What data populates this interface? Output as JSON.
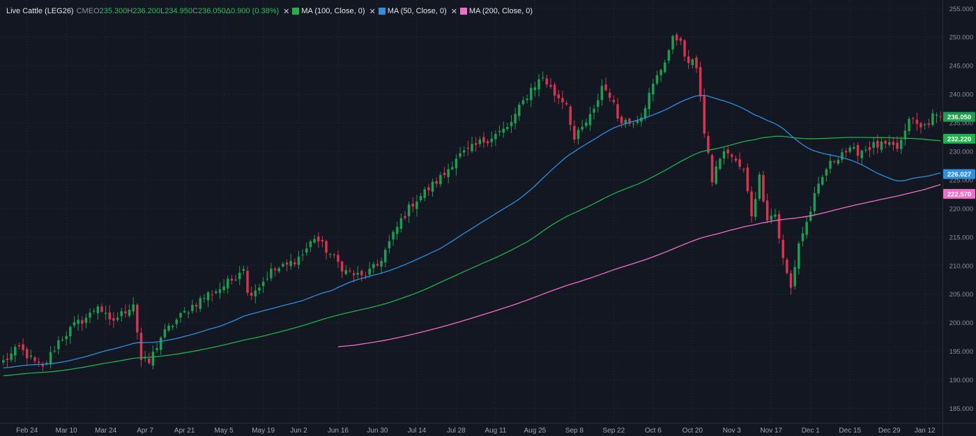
{
  "legend": {
    "symbol": "Live Cattle (LEG26)",
    "exchange": "CME",
    "open_label": "O",
    "open": "235.300",
    "high_label": "H",
    "high": "236.200",
    "low_label": "L",
    "low": "234.950",
    "close_label": "C",
    "close": "236.050",
    "change": "Δ0.900 (0.38%)",
    "indicators": [
      {
        "label": "MA (100, Close, 0)",
        "color": "#1fb14a"
      },
      {
        "label": "MA (50, Close, 0)",
        "color": "#2f8fe0"
      },
      {
        "label": "MA (200, Close, 0)",
        "color": "#f06ec8"
      }
    ],
    "close_icon": "close-icon"
  },
  "colors": {
    "background": "#131722",
    "grid": "#2a2e39",
    "up": "#1f9e4f",
    "down": "#d9334f",
    "ma50": "#2f8fe0",
    "ma100": "#1fb14a",
    "ma200": "#f06ec8"
  },
  "chart_data": {
    "type": "candlestick",
    "title": "Live Cattle (LEG26)",
    "ylim": [
      182.5,
      256.5
    ],
    "y_ticks": [
      "185.000",
      "190.000",
      "195.000",
      "200.000",
      "205.000",
      "210.000",
      "215.000",
      "220.000",
      "225.000",
      "230.000",
      "235.000",
      "240.000",
      "245.000",
      "250.000",
      "255.000"
    ],
    "x_ticks": [
      "Feb 24",
      "Mar 10",
      "Mar 24",
      "Apr 7",
      "Apr 21",
      "May 5",
      "May 19",
      "Jun 2",
      "Jun 16",
      "Jun 30",
      "Jul 14",
      "Jul 28",
      "Aug 11",
      "Aug 25",
      "Sep 8",
      "Sep 22",
      "Oct 6",
      "Oct 20",
      "Nov 3",
      "Nov 17",
      "Dec 1",
      "Dec 15",
      "Dec 29",
      "Jan 12"
    ],
    "x_tick_index": [
      6,
      16,
      26,
      36,
      46,
      56,
      66,
      75,
      85,
      95,
      105,
      115,
      125,
      135,
      145,
      155,
      165,
      175,
      185,
      195,
      205,
      215,
      225,
      234
    ],
    "price_tags": [
      {
        "label": "236.050",
        "value": 236.05,
        "color": "#1f9e4f"
      },
      {
        "label": "232.220",
        "value": 232.22,
        "color": "#1fb14a"
      },
      {
        "label": "226.027",
        "value": 226.027,
        "color": "#2f8fe0"
      },
      {
        "label": "222.570",
        "value": 222.57,
        "color": "#f06ec8"
      }
    ],
    "close_anchors": [
      [
        0,
        193.2
      ],
      [
        4,
        195.6
      ],
      [
        8,
        193.0
      ],
      [
        10,
        192.0
      ],
      [
        14,
        196.8
      ],
      [
        18,
        199.5
      ],
      [
        22,
        201.4
      ],
      [
        24,
        203.2
      ],
      [
        27,
        200.0
      ],
      [
        30,
        201.5
      ],
      [
        33,
        203.5
      ],
      [
        35,
        193.5
      ],
      [
        37,
        193.0
      ],
      [
        40,
        197.5
      ],
      [
        44,
        200.5
      ],
      [
        48,
        203.0
      ],
      [
        52,
        205.0
      ],
      [
        55,
        206.0
      ],
      [
        58,
        207.5
      ],
      [
        61,
        210.0
      ],
      [
        62,
        205.0
      ],
      [
        65,
        206.5
      ],
      [
        68,
        209.0
      ],
      [
        72,
        210.0
      ],
      [
        76,
        212.0
      ],
      [
        79,
        215.0
      ],
      [
        83,
        212.0
      ],
      [
        87,
        209.0
      ],
      [
        91,
        208.0
      ],
      [
        95,
        210.0
      ],
      [
        98,
        214.0
      ],
      [
        101,
        218.0
      ],
      [
        104,
        221.0
      ],
      [
        108,
        223.5
      ],
      [
        112,
        226.0
      ],
      [
        115,
        229.0
      ],
      [
        118,
        230.0
      ],
      [
        121,
        231.5
      ],
      [
        125,
        233.0
      ],
      [
        128,
        234.0
      ],
      [
        131,
        237.5
      ],
      [
        134,
        241.0
      ],
      [
        137,
        243.0
      ],
      [
        140,
        240.0
      ],
      [
        143,
        238.5
      ],
      [
        145,
        232.0
      ],
      [
        147,
        234.0
      ],
      [
        150,
        237.0
      ],
      [
        152,
        241.5
      ],
      [
        154,
        240.0
      ],
      [
        156,
        236.0
      ],
      [
        159,
        235.0
      ],
      [
        162,
        236.5
      ],
      [
        165,
        241.5
      ],
      [
        168,
        246.0
      ],
      [
        170,
        249.5
      ],
      [
        172,
        250.0
      ],
      [
        173,
        246.0
      ],
      [
        176,
        245.0
      ],
      [
        177,
        240.0
      ],
      [
        178,
        233.0
      ],
      [
        180,
        225.0
      ],
      [
        182,
        229.0
      ],
      [
        184,
        230.0
      ],
      [
        186,
        228.0
      ],
      [
        188,
        226.5
      ],
      [
        190,
        219.0
      ],
      [
        192,
        225.5
      ],
      [
        194,
        218.5
      ],
      [
        196,
        219.0
      ],
      [
        198,
        211.0
      ],
      [
        200,
        206.0
      ],
      [
        202,
        214.0
      ],
      [
        204,
        217.5
      ],
      [
        206,
        222.0
      ],
      [
        209,
        227.0
      ],
      [
        213,
        230.0
      ],
      [
        217,
        230.0
      ],
      [
        221,
        231.0
      ],
      [
        224,
        231.0
      ],
      [
        227,
        230.5
      ],
      [
        229,
        233.0
      ],
      [
        230,
        236.0
      ],
      [
        233,
        234.0
      ],
      [
        236,
        236.0
      ],
      [
        238,
        236.05
      ]
    ],
    "n_candles": 239,
    "sma_periods": {
      "ma50": 50,
      "ma100": 100,
      "ma200": 200
    }
  }
}
